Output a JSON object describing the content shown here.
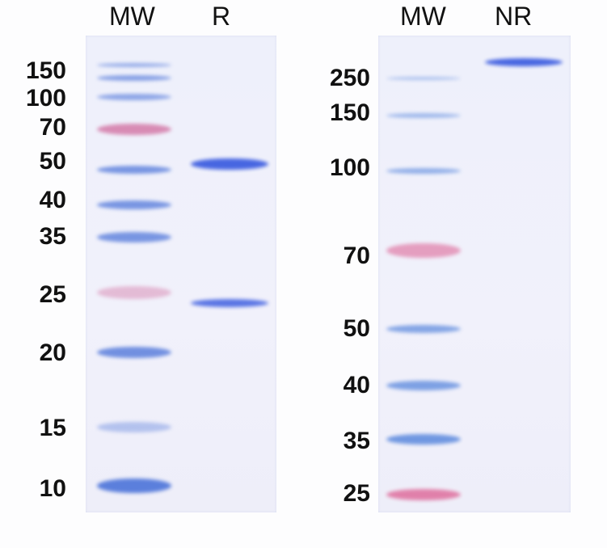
{
  "left_gel": {
    "lanes": [
      "MW",
      "R"
    ],
    "markers_kda": [
      "150",
      "100",
      "70",
      "50",
      "40",
      "35",
      "25",
      "20",
      "15",
      "10"
    ],
    "colors": {
      "blue": "#5b7fdc",
      "pink": "#d47aa8",
      "sample": "#3f5fe0"
    }
  },
  "right_gel": {
    "lanes": [
      "MW",
      "NR"
    ],
    "markers_kda": [
      "250",
      "150",
      "100",
      "70",
      "50",
      "40",
      "35",
      "25"
    ],
    "colors": {
      "blue": "#6a93e0",
      "pink": "#e07ba6",
      "sample": "#3f5fe0"
    }
  }
}
